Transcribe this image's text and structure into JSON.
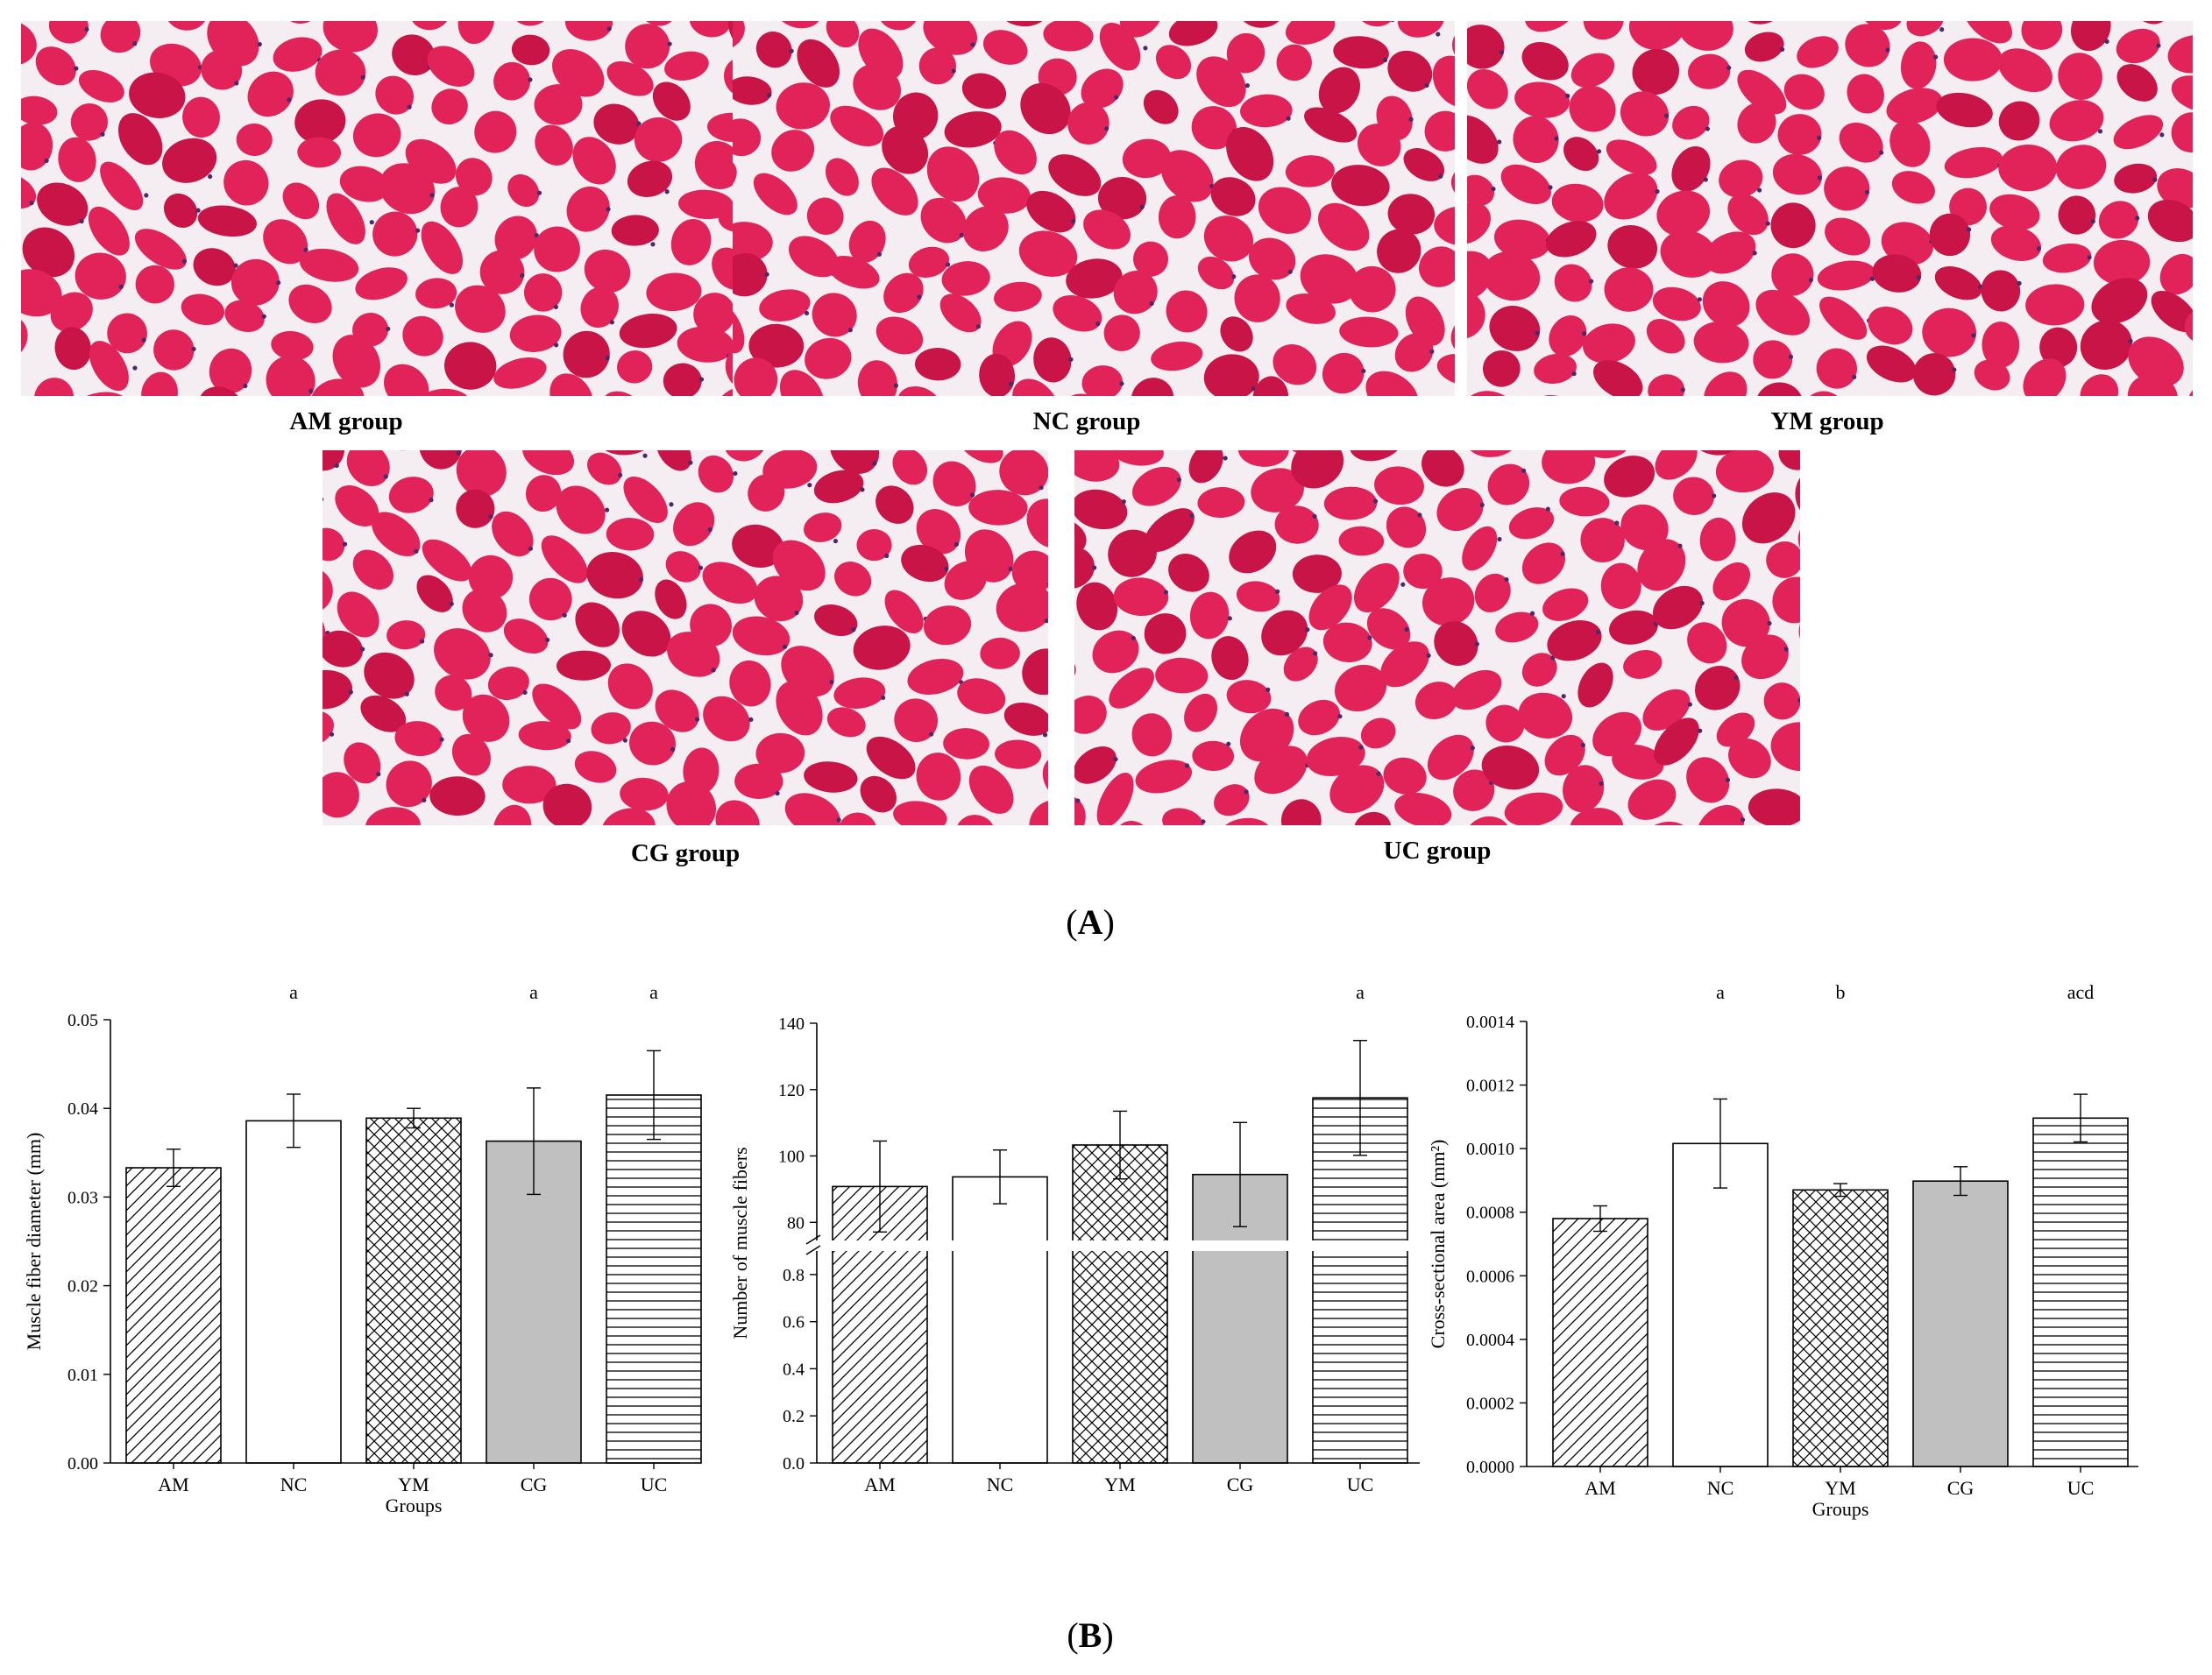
{
  "colors": {
    "tissue_background": "#f4eef2",
    "muscle_fiber": "#e2235a",
    "muscle_fiber_dark": "#c81446",
    "nucleus": "#4a2a6a",
    "bar_gray": "#c0c0c0",
    "axis": "#000000"
  },
  "panel_a": {
    "label_letter": "A",
    "micrographs": [
      {
        "label": "AM group",
        "seed": 11
      },
      {
        "label": "NC group",
        "seed": 23
      },
      {
        "label": "YM group",
        "seed": 37
      },
      {
        "label": "CG group",
        "seed": 41
      },
      {
        "label": "UC group",
        "seed": 59
      }
    ]
  },
  "panel_b": {
    "label_letter": "B"
  },
  "chart_data": [
    {
      "type": "bar",
      "categories": [
        "AM",
        "NC",
        "YM",
        "CG",
        "UC"
      ],
      "patterns": [
        "diagonal",
        "none",
        "crosshatch",
        "gray",
        "horizontal"
      ],
      "values": [
        0.0333,
        0.0386,
        0.0389,
        0.0363,
        0.0415
      ],
      "errors": [
        0.0021,
        0.003,
        0.0011,
        0.006,
        0.005
      ],
      "significance": [
        "",
        "a",
        "",
        "a",
        "a"
      ],
      "xlabel": "Groups",
      "ylabel": "Muscle fiber diameter (mm)",
      "ylim": [
        0,
        0.05
      ],
      "yticks": [
        "0.00",
        "0.01",
        "0.02",
        "0.03",
        "0.04",
        "0.05"
      ],
      "grid": false
    },
    {
      "type": "bar",
      "categories": [
        "AM",
        "NC",
        "YM",
        "CG",
        "UC"
      ],
      "patterns": [
        "diagonal",
        "none",
        "crosshatch",
        "gray",
        "horizontal"
      ],
      "values": [
        90.8,
        93.7,
        103.3,
        94.4,
        117.5
      ],
      "errors": [
        13.7,
        8.1,
        10.2,
        15.7,
        17.3
      ],
      "significance": [
        "",
        "",
        "",
        "",
        "a"
      ],
      "xlabel": "",
      "ylabel": "Number of muscle fibers",
      "broken_axis": true,
      "lower_ylim": [
        0,
        0.9
      ],
      "upper_ylim": [
        74,
        140
      ],
      "lower_yticks": [
        "0.0",
        "0.2",
        "0.4",
        "0.6",
        "0.8"
      ],
      "upper_yticks": [
        "80",
        "100",
        "120",
        "140"
      ],
      "grid": false
    },
    {
      "type": "bar",
      "categories": [
        "AM",
        "NC",
        "YM",
        "CG",
        "UC"
      ],
      "patterns": [
        "diagonal",
        "none",
        "crosshatch",
        "gray",
        "horizontal"
      ],
      "values": [
        0.00078,
        0.001016,
        0.00087,
        0.000898,
        0.001096
      ],
      "errors": [
        4e-05,
        0.00014,
        2e-05,
        4.5e-05,
        7.5e-05
      ],
      "significance": [
        "",
        "a",
        "b",
        "",
        "acd"
      ],
      "xlabel": "Groups",
      "ylabel": "Cross-sectional area (mm²)",
      "ylim": [
        0,
        0.0014
      ],
      "yticks": [
        "0.0000",
        "0.0002",
        "0.0004",
        "0.0006",
        "0.0008",
        "0.0010",
        "0.0012",
        "0.0014"
      ],
      "grid": false
    }
  ]
}
